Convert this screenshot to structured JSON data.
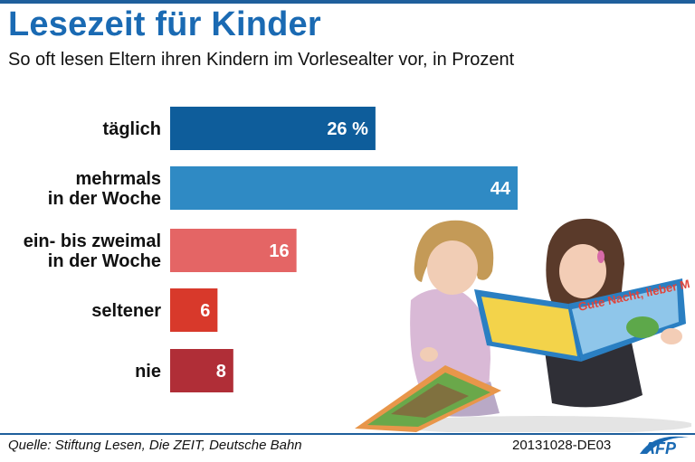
{
  "header": {
    "title": "Lesezeit für Kinder",
    "subtitle": "So oft lesen Eltern ihren Kindern im Vorlesealter vor, in Prozent"
  },
  "chart_data": {
    "type": "bar",
    "orientation": "horizontal",
    "categories": [
      [
        "täglich"
      ],
      [
        "mehrmals",
        "in der Woche"
      ],
      [
        "ein- bis zweimal",
        "in der Woche"
      ],
      [
        "seltener"
      ],
      [
        "nie"
      ]
    ],
    "values": [
      26,
      44,
      16,
      6,
      8
    ],
    "value_labels": [
      "26 %",
      "44",
      "16",
      "6",
      "8"
    ],
    "colors": [
      "#0e5d9b",
      "#2f8ac4",
      "#e46565",
      "#d8392b",
      "#b02e37"
    ],
    "title": "Lesezeit für Kinder",
    "xlabel": "",
    "ylabel": "",
    "grid": false,
    "legend": "none"
  },
  "footer": {
    "source": "Quelle: Stiftung Lesen, Die ZEIT, Deutsche Bahn",
    "code": "20131028-DE03",
    "logo_text": "AFP"
  },
  "colors": {
    "title": "#1a6ab3",
    "rule": "#1f5f9c"
  }
}
